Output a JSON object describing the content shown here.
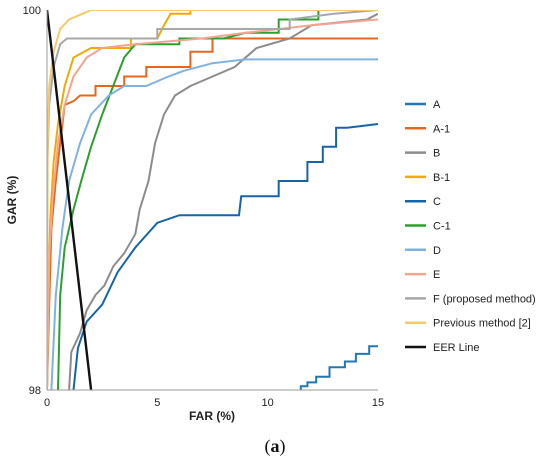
{
  "caption": {
    "open": "(",
    "label": "a",
    "close": ")"
  },
  "chart_data": {
    "type": "line",
    "title": "",
    "xlabel": "FAR (%)",
    "ylabel": "GAR (%)",
    "xlim": [
      0,
      15
    ],
    "ylim": [
      98,
      100
    ],
    "x_ticks": [
      0,
      5,
      10,
      15
    ],
    "y_ticks": [
      98,
      100
    ],
    "grid": false,
    "legend_position": "right",
    "series": [
      {
        "name": "A",
        "color": "#1f77b4",
        "points": [
          [
            11.5,
            98.0
          ],
          [
            11.5,
            98.02
          ],
          [
            11.8,
            98.02
          ],
          [
            11.8,
            98.04
          ],
          [
            12.2,
            98.04
          ],
          [
            12.2,
            98.07
          ],
          [
            12.8,
            98.07
          ],
          [
            12.8,
            98.12
          ],
          [
            13.5,
            98.12
          ],
          [
            13.5,
            98.15
          ],
          [
            14.0,
            98.15
          ],
          [
            14.0,
            98.19
          ],
          [
            14.6,
            98.19
          ],
          [
            14.6,
            98.23
          ],
          [
            15.0,
            98.23
          ]
        ]
      },
      {
        "name": "A-1",
        "color": "#e8651e",
        "points": [
          [
            0,
            98.0
          ],
          [
            0.1,
            98.45
          ],
          [
            0.2,
            98.85
          ],
          [
            0.4,
            99.1
          ],
          [
            0.6,
            99.3
          ],
          [
            0.8,
            99.5
          ],
          [
            1.2,
            99.52
          ],
          [
            1.5,
            99.55
          ],
          [
            2.2,
            99.55
          ],
          [
            2.2,
            99.6
          ],
          [
            3.5,
            99.6
          ],
          [
            3.5,
            99.65
          ],
          [
            4.5,
            99.65
          ],
          [
            4.5,
            99.7
          ],
          [
            6.5,
            99.7
          ],
          [
            6.5,
            99.78
          ],
          [
            7.5,
            99.78
          ],
          [
            7.5,
            99.85
          ],
          [
            15,
            99.85
          ]
        ]
      },
      {
        "name": "B",
        "color": "#8c8c8c",
        "points": [
          [
            1.0,
            98.0
          ],
          [
            1.1,
            98.2
          ],
          [
            1.5,
            98.3
          ],
          [
            1.8,
            98.42
          ],
          [
            2.2,
            98.5
          ],
          [
            2.6,
            98.55
          ],
          [
            3.0,
            98.65
          ],
          [
            3.5,
            98.72
          ],
          [
            4.0,
            98.82
          ],
          [
            4.2,
            98.95
          ],
          [
            4.6,
            99.1
          ],
          [
            4.9,
            99.3
          ],
          [
            5.3,
            99.45
          ],
          [
            5.8,
            99.55
          ],
          [
            6.5,
            99.6
          ],
          [
            7.5,
            99.65
          ],
          [
            8.5,
            99.7
          ],
          [
            9.5,
            99.8
          ],
          [
            11,
            99.85
          ],
          [
            12,
            99.92
          ],
          [
            14.5,
            99.95
          ],
          [
            15,
            99.98
          ]
        ]
      },
      {
        "name": "B-1",
        "color": "#f2a900",
        "points": [
          [
            0,
            98.0
          ],
          [
            0.08,
            98.6
          ],
          [
            0.15,
            98.9
          ],
          [
            0.3,
            99.2
          ],
          [
            0.5,
            99.4
          ],
          [
            0.8,
            99.6
          ],
          [
            1.2,
            99.75
          ],
          [
            2.0,
            99.8
          ],
          [
            3.8,
            99.8
          ],
          [
            3.8,
            99.85
          ],
          [
            5.0,
            99.85
          ],
          [
            5.3,
            99.92
          ],
          [
            5.6,
            99.98
          ],
          [
            6.5,
            99.98
          ],
          [
            6.5,
            100
          ],
          [
            15,
            100
          ]
        ]
      },
      {
        "name": "C",
        "color": "#1565a8",
        "points": [
          [
            1.2,
            98.0
          ],
          [
            1.4,
            98.22
          ],
          [
            1.8,
            98.36
          ],
          [
            2.5,
            98.45
          ],
          [
            3.2,
            98.62
          ],
          [
            4.0,
            98.75
          ],
          [
            5.0,
            98.88
          ],
          [
            6.0,
            98.92
          ],
          [
            8.7,
            98.92
          ],
          [
            8.8,
            99.02
          ],
          [
            10.5,
            99.02
          ],
          [
            10.5,
            99.1
          ],
          [
            11.8,
            99.1
          ],
          [
            11.8,
            99.2
          ],
          [
            12.5,
            99.2
          ],
          [
            12.5,
            99.28
          ],
          [
            13.1,
            99.28
          ],
          [
            13.1,
            99.38
          ],
          [
            13.6,
            99.38
          ],
          [
            15,
            99.4
          ]
        ]
      },
      {
        "name": "C-1",
        "color": "#2ca02c",
        "points": [
          [
            0.5,
            98.0
          ],
          [
            0.6,
            98.5
          ],
          [
            0.8,
            98.75
          ],
          [
            1.2,
            98.95
          ],
          [
            1.6,
            99.12
          ],
          [
            2.0,
            99.28
          ],
          [
            2.5,
            99.45
          ],
          [
            3.0,
            99.6
          ],
          [
            3.5,
            99.75
          ],
          [
            4.0,
            99.82
          ],
          [
            6.0,
            99.82
          ],
          [
            6.0,
            99.85
          ],
          [
            8.0,
            99.85
          ],
          [
            9.0,
            99.88
          ],
          [
            10.5,
            99.88
          ],
          [
            10.5,
            99.95
          ],
          [
            12.3,
            99.95
          ],
          [
            12.3,
            100
          ],
          [
            15,
            100
          ]
        ]
      },
      {
        "name": "D",
        "color": "#7fb3de",
        "points": [
          [
            0.2,
            98.0
          ],
          [
            0.4,
            98.5
          ],
          [
            0.7,
            98.85
          ],
          [
            1.0,
            99.1
          ],
          [
            1.5,
            99.3
          ],
          [
            2.0,
            99.45
          ],
          [
            2.8,
            99.55
          ],
          [
            3.5,
            99.6
          ],
          [
            4.5,
            99.6
          ],
          [
            5.5,
            99.65
          ],
          [
            6.2,
            99.68
          ],
          [
            7.5,
            99.72
          ],
          [
            9,
            99.74
          ],
          [
            15,
            99.74
          ]
        ]
      },
      {
        "name": "E",
        "color": "#f4a58f",
        "points": [
          [
            0,
            98.0
          ],
          [
            0.1,
            98.7
          ],
          [
            0.25,
            99.0
          ],
          [
            0.5,
            99.3
          ],
          [
            0.8,
            99.5
          ],
          [
            1.2,
            99.65
          ],
          [
            1.8,
            99.75
          ],
          [
            2.5,
            99.8
          ],
          [
            4,
            99.82
          ],
          [
            7,
            99.85
          ],
          [
            9,
            99.88
          ],
          [
            12,
            99.92
          ],
          [
            15,
            99.95
          ]
        ]
      },
      {
        "name": "F (proposed method)",
        "color": "#a8a8a8",
        "points": [
          [
            0,
            98.0
          ],
          [
            0.02,
            99.2
          ],
          [
            0.1,
            99.5
          ],
          [
            0.3,
            99.7
          ],
          [
            0.6,
            99.82
          ],
          [
            0.9,
            99.85
          ],
          [
            5.0,
            99.85
          ],
          [
            5.0,
            99.9
          ],
          [
            11,
            99.9
          ],
          [
            11,
            99.95
          ],
          [
            13,
            99.98
          ],
          [
            15,
            100
          ]
        ]
      },
      {
        "name": "Previous method [2]",
        "color": "#f7c96b",
        "points": [
          [
            0,
            98.0
          ],
          [
            0.03,
            99.3
          ],
          [
            0.1,
            99.6
          ],
          [
            0.3,
            99.78
          ],
          [
            0.6,
            99.9
          ],
          [
            1.0,
            99.95
          ],
          [
            1.6,
            99.98
          ],
          [
            2.0,
            100
          ],
          [
            15,
            100
          ]
        ]
      },
      {
        "name": "EER Line",
        "color": "#111111",
        "points": [
          [
            0,
            100
          ],
          [
            2,
            98
          ]
        ]
      }
    ]
  }
}
